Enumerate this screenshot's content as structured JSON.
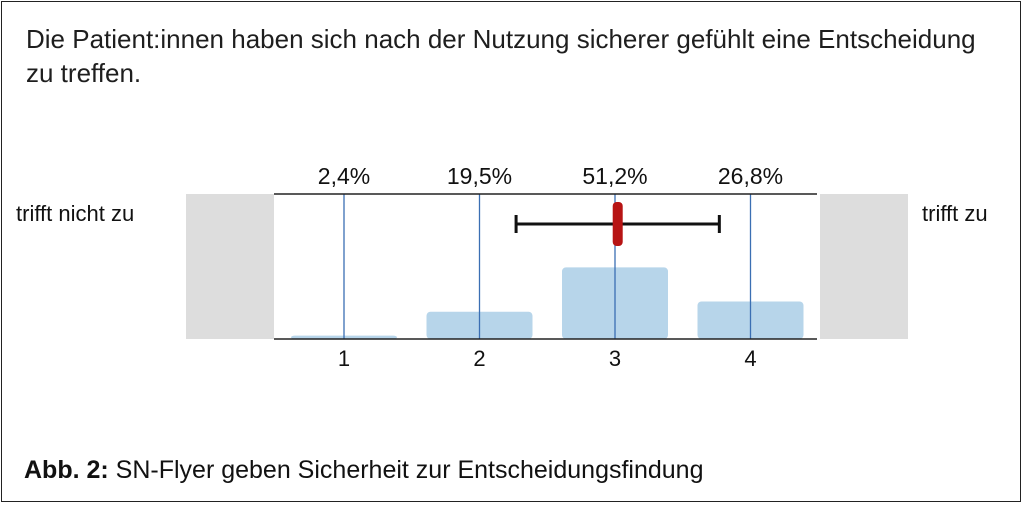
{
  "question": "Die Patient:innen haben sich nach der Nutzung sicherer gefühlt eine Entscheidung zu treffen.",
  "scale": {
    "left_label": "trifft nicht zu",
    "right_label": "trifft zu"
  },
  "chart_data": {
    "type": "bar",
    "categories": [
      "1",
      "2",
      "3",
      "4"
    ],
    "values": [
      2.4,
      19.5,
      51.2,
      26.8
    ],
    "value_labels": [
      "2,4%",
      "19,5%",
      "51,2%",
      "26,8%"
    ],
    "ylim": [
      0,
      100
    ],
    "grid": false,
    "mean": 3.02,
    "error_range": [
      2.27,
      3.77
    ],
    "colors": {
      "bar": "#b7d5ea",
      "category_line": "#3b6fb3",
      "mean_marker": "#b71414",
      "range_line": "#111111",
      "side_panel": "#dddddd"
    }
  },
  "caption": {
    "prefix": "Abb. 2:",
    "text": " SN-Flyer geben Sicherheit zur Entscheidungsfindung"
  }
}
